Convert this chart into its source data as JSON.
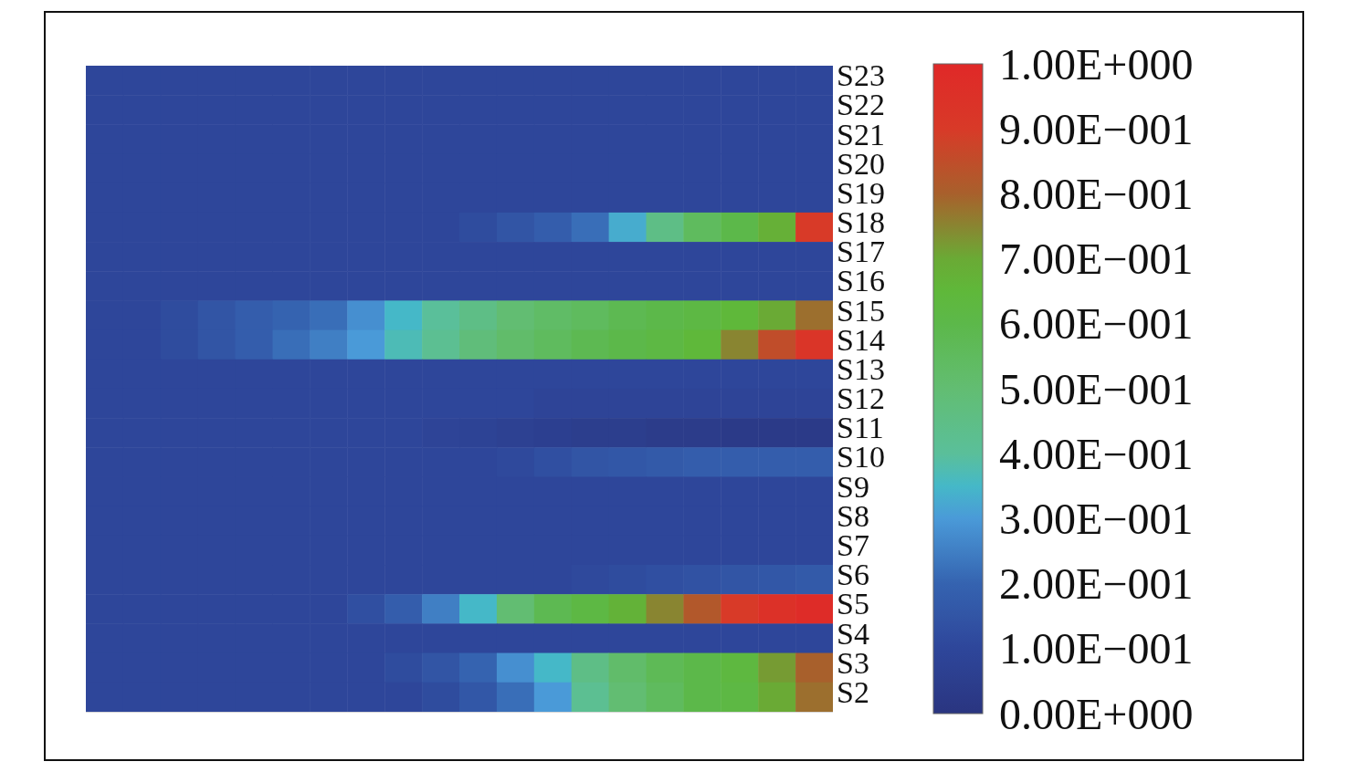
{
  "chart_data": {
    "type": "heatmap",
    "tick_labels": "y",
    "categories": [
      null,
      null,
      null,
      null,
      null,
      null,
      null,
      null,
      null,
      null,
      null,
      null,
      null,
      null,
      null,
      null,
      null,
      null,
      null,
      null
    ],
    "y_categories": [
      "S23",
      "S22",
      "S21",
      "S20",
      "S19",
      "S18",
      "S17",
      "S16",
      "S15",
      "S14",
      "S13",
      "S12",
      "S11",
      "S10",
      "S9",
      "S8",
      "S7",
      "S6",
      "S5",
      "S4",
      "S3",
      "S2"
    ],
    "cells": [
      [
        0.1,
        0.1,
        0.1,
        0.1,
        0.1,
        0.1,
        0.1,
        0.1,
        0.1,
        0.1,
        0.1,
        0.1,
        0.1,
        0.1,
        0.1,
        0.1,
        0.1,
        0.1,
        0.1,
        0.1
      ],
      [
        0.1,
        0.1,
        0.1,
        0.1,
        0.1,
        0.1,
        0.1,
        0.1,
        0.1,
        0.1,
        0.1,
        0.1,
        0.1,
        0.1,
        0.1,
        0.1,
        0.1,
        0.1,
        0.1,
        0.1
      ],
      [
        0.1,
        0.1,
        0.1,
        0.1,
        0.1,
        0.1,
        0.1,
        0.1,
        0.1,
        0.1,
        0.1,
        0.1,
        0.1,
        0.1,
        0.1,
        0.1,
        0.1,
        0.1,
        0.1,
        0.1
      ],
      [
        0.1,
        0.1,
        0.1,
        0.1,
        0.1,
        0.1,
        0.1,
        0.1,
        0.1,
        0.1,
        0.1,
        0.1,
        0.1,
        0.1,
        0.1,
        0.1,
        0.1,
        0.1,
        0.1,
        0.1
      ],
      [
        0.1,
        0.1,
        0.1,
        0.1,
        0.1,
        0.1,
        0.1,
        0.1,
        0.1,
        0.1,
        0.1,
        0.1,
        0.1,
        0.1,
        0.1,
        0.1,
        0.1,
        0.1,
        0.1,
        0.1
      ],
      [
        0.1,
        0.1,
        0.1,
        0.1,
        0.1,
        0.1,
        0.1,
        0.1,
        0.1,
        0.1,
        0.12,
        0.15,
        0.18,
        0.22,
        0.33,
        0.45,
        0.55,
        0.6,
        0.68,
        0.9
      ],
      [
        0.1,
        0.1,
        0.1,
        0.1,
        0.1,
        0.1,
        0.1,
        0.1,
        0.1,
        0.1,
        0.1,
        0.1,
        0.1,
        0.1,
        0.1,
        0.1,
        0.1,
        0.1,
        0.1,
        0.1
      ],
      [
        0.1,
        0.1,
        0.1,
        0.1,
        0.1,
        0.1,
        0.1,
        0.1,
        0.1,
        0.1,
        0.1,
        0.1,
        0.1,
        0.1,
        0.1,
        0.1,
        0.1,
        0.1,
        0.1,
        0.1
      ],
      [
        0.1,
        0.1,
        0.12,
        0.15,
        0.18,
        0.2,
        0.22,
        0.28,
        0.35,
        0.4,
        0.45,
        0.5,
        0.53,
        0.55,
        0.58,
        0.6,
        0.62,
        0.65,
        0.7,
        0.78
      ],
      [
        0.1,
        0.1,
        0.12,
        0.15,
        0.18,
        0.22,
        0.25,
        0.3,
        0.37,
        0.42,
        0.48,
        0.52,
        0.55,
        0.58,
        0.6,
        0.62,
        0.65,
        0.75,
        0.85,
        0.93
      ],
      [
        0.1,
        0.1,
        0.1,
        0.1,
        0.1,
        0.1,
        0.1,
        0.1,
        0.1,
        0.1,
        0.1,
        0.1,
        0.1,
        0.1,
        0.1,
        0.1,
        0.1,
        0.1,
        0.1,
        0.1
      ],
      [
        0.1,
        0.1,
        0.1,
        0.1,
        0.1,
        0.1,
        0.1,
        0.1,
        0.1,
        0.1,
        0.1,
        0.1,
        0.09,
        0.09,
        0.09,
        0.09,
        0.09,
        0.09,
        0.09,
        0.09
      ],
      [
        0.1,
        0.1,
        0.1,
        0.1,
        0.1,
        0.1,
        0.1,
        0.1,
        0.1,
        0.09,
        0.08,
        0.07,
        0.06,
        0.05,
        0.05,
        0.04,
        0.04,
        0.03,
        0.03,
        0.03
      ],
      [
        0.1,
        0.1,
        0.1,
        0.1,
        0.1,
        0.1,
        0.1,
        0.1,
        0.1,
        0.1,
        0.1,
        0.11,
        0.13,
        0.15,
        0.16,
        0.17,
        0.18,
        0.18,
        0.18,
        0.18
      ],
      [
        0.1,
        0.1,
        0.1,
        0.1,
        0.1,
        0.1,
        0.1,
        0.1,
        0.1,
        0.1,
        0.1,
        0.1,
        0.1,
        0.1,
        0.1,
        0.1,
        0.1,
        0.1,
        0.1,
        0.1
      ],
      [
        0.1,
        0.1,
        0.1,
        0.1,
        0.1,
        0.1,
        0.1,
        0.1,
        0.1,
        0.1,
        0.1,
        0.1,
        0.1,
        0.1,
        0.1,
        0.1,
        0.1,
        0.1,
        0.1,
        0.1
      ],
      [
        0.1,
        0.1,
        0.1,
        0.1,
        0.1,
        0.1,
        0.1,
        0.1,
        0.1,
        0.1,
        0.1,
        0.1,
        0.1,
        0.1,
        0.1,
        0.1,
        0.1,
        0.1,
        0.1,
        0.1
      ],
      [
        0.1,
        0.1,
        0.1,
        0.1,
        0.1,
        0.1,
        0.1,
        0.1,
        0.1,
        0.1,
        0.1,
        0.1,
        0.1,
        0.11,
        0.12,
        0.13,
        0.14,
        0.15,
        0.16,
        0.17
      ],
      [
        0.1,
        0.1,
        0.1,
        0.1,
        0.1,
        0.1,
        0.1,
        0.13,
        0.18,
        0.25,
        0.35,
        0.5,
        0.58,
        0.62,
        0.67,
        0.75,
        0.82,
        0.9,
        0.95,
        0.98
      ],
      [
        0.1,
        0.1,
        0.1,
        0.1,
        0.1,
        0.1,
        0.1,
        0.1,
        0.1,
        0.1,
        0.1,
        0.1,
        0.1,
        0.1,
        0.1,
        0.1,
        0.1,
        0.1,
        0.1,
        0.1
      ],
      [
        0.1,
        0.1,
        0.1,
        0.1,
        0.1,
        0.1,
        0.1,
        0.1,
        0.12,
        0.15,
        0.2,
        0.28,
        0.35,
        0.45,
        0.52,
        0.57,
        0.6,
        0.63,
        0.72,
        0.8
      ],
      [
        0.1,
        0.1,
        0.1,
        0.1,
        0.1,
        0.1,
        0.1,
        0.1,
        0.1,
        0.12,
        0.16,
        0.22,
        0.3,
        0.42,
        0.5,
        0.55,
        0.6,
        0.62,
        0.7,
        0.78
      ]
    ],
    "clim": [
      0,
      1
    ],
    "cticks": [
      {
        "value": 0,
        "label": "0.00E+000"
      },
      {
        "value": 0.1,
        "label": "1.00E−001"
      },
      {
        "value": 0.2,
        "label": "2.00E−001"
      },
      {
        "value": 0.3,
        "label": "3.00E−001"
      },
      {
        "value": 0.4,
        "label": "4.00E−001"
      },
      {
        "value": 0.5,
        "label": "5.00E−001"
      },
      {
        "value": 0.6,
        "label": "6.00E−001"
      },
      {
        "value": 0.7,
        "label": "7.00E−001"
      },
      {
        "value": 0.8,
        "label": "8.00E−001"
      },
      {
        "value": 0.9,
        "label": "9.00E−001"
      },
      {
        "value": 1,
        "label": "1.00E+000"
      }
    ]
  }
}
